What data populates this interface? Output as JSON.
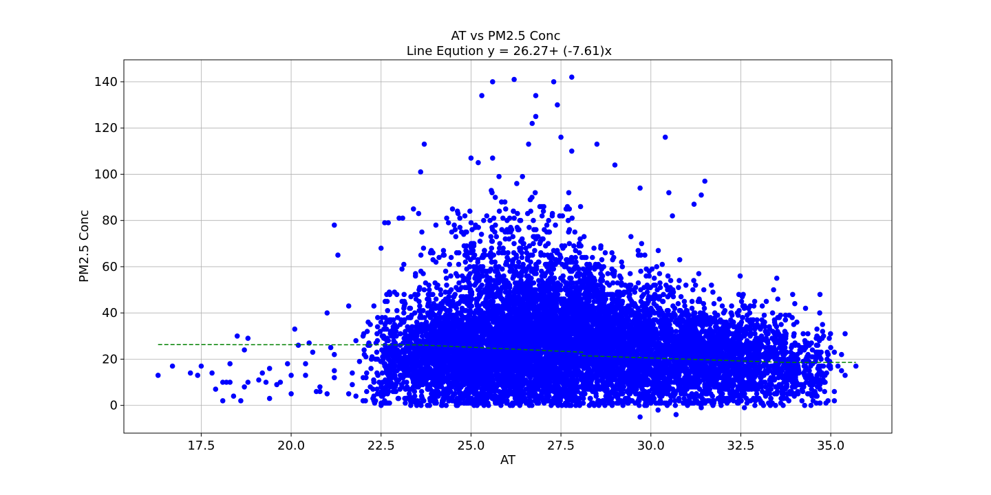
{
  "chart_data": {
    "type": "scatter",
    "title": "AT vs PM2.5 Conc",
    "subtitle": "Line Eqution y = 26.27+ (-7.61)x",
    "xlabel": "AT",
    "ylabel": "PM2.5 Conc",
    "xlim": [
      15.35,
      36.7
    ],
    "ylim": [
      -12,
      149.5
    ],
    "xticks": [
      "17.5",
      "20.0",
      "22.5",
      "25.0",
      "27.5",
      "30.0",
      "32.5",
      "35.0"
    ],
    "yticks": [
      "0",
      "20",
      "40",
      "60",
      "80",
      "100",
      "120",
      "140"
    ],
    "grid": true,
    "colors": {
      "points": "#0000ff",
      "trend": "#008000"
    },
    "trend_line": {
      "style": "dashed",
      "points": [
        [
          16.3,
          26.3
        ],
        [
          23.5,
          26.2
        ],
        [
          28.1,
          23.0
        ],
        [
          28.1,
          21.5
        ],
        [
          33.7,
          18.6
        ],
        [
          35.7,
          18.6
        ]
      ]
    },
    "series": [
      {
        "outliers": [
          [
            16.3,
            13
          ],
          [
            16.7,
            17
          ],
          [
            17.2,
            14
          ],
          [
            17.4,
            13
          ],
          [
            17.5,
            17
          ],
          [
            17.8,
            14
          ],
          [
            17.9,
            7
          ],
          [
            18.1,
            2
          ],
          [
            18.1,
            10
          ],
          [
            18.2,
            10
          ],
          [
            18.3,
            10
          ],
          [
            18.3,
            18
          ],
          [
            18.4,
            4
          ],
          [
            18.5,
            30
          ],
          [
            18.6,
            2
          ],
          [
            18.7,
            8
          ],
          [
            18.7,
            24
          ],
          [
            18.8,
            29
          ],
          [
            18.8,
            10
          ],
          [
            19.1,
            11
          ],
          [
            19.2,
            14
          ],
          [
            19.3,
            10
          ],
          [
            19.4,
            3
          ],
          [
            19.4,
            16
          ],
          [
            19.6,
            9
          ],
          [
            19.7,
            10
          ],
          [
            19.9,
            18
          ],
          [
            20.0,
            5
          ],
          [
            20.0,
            13
          ],
          [
            20.1,
            33
          ],
          [
            20.2,
            26
          ],
          [
            20.4,
            13
          ],
          [
            20.4,
            18
          ],
          [
            20.5,
            27
          ],
          [
            20.6,
            23
          ],
          [
            20.7,
            6
          ],
          [
            20.8,
            8
          ],
          [
            20.8,
            6
          ],
          [
            21.0,
            5
          ],
          [
            21.0,
            40
          ],
          [
            21.1,
            25
          ],
          [
            21.2,
            78
          ],
          [
            21.2,
            22
          ],
          [
            21.2,
            15
          ],
          [
            21.2,
            12
          ],
          [
            21.3,
            65
          ],
          [
            21.6,
            43
          ],
          [
            21.6,
            5
          ],
          [
            21.7,
            14
          ],
          [
            21.7,
            9
          ],
          [
            21.8,
            4
          ],
          [
            21.8,
            28
          ],
          [
            21.9,
            19
          ],
          [
            22.0,
            30
          ],
          [
            22.0,
            2
          ],
          [
            22.1,
            14
          ],
          [
            22.1,
            6
          ],
          [
            22.2,
            35
          ],
          [
            22.2,
            8
          ],
          [
            22.3,
            43
          ],
          [
            22.3,
            10
          ],
          [
            22.4,
            5
          ],
          [
            22.5,
            68
          ],
          [
            22.6,
            79
          ],
          [
            22.7,
            79
          ],
          [
            23.0,
            81
          ],
          [
            23.1,
            81
          ],
          [
            23.4,
            85
          ],
          [
            23.6,
            101
          ],
          [
            23.7,
            113
          ],
          [
            25.0,
            107
          ],
          [
            25.2,
            105
          ],
          [
            25.3,
            134
          ],
          [
            25.6,
            107
          ],
          [
            25.6,
            140
          ],
          [
            26.2,
            141
          ],
          [
            26.6,
            113
          ],
          [
            26.7,
            122
          ],
          [
            26.8,
            125
          ],
          [
            26.8,
            134
          ],
          [
            27.3,
            140
          ],
          [
            27.4,
            130
          ],
          [
            27.5,
            116
          ],
          [
            27.8,
            142
          ],
          [
            27.8,
            110
          ],
          [
            28.5,
            113
          ],
          [
            29.0,
            104
          ],
          [
            29.7,
            94
          ],
          [
            30.4,
            116
          ],
          [
            30.5,
            92
          ],
          [
            30.6,
            82
          ],
          [
            31.2,
            87
          ],
          [
            31.5,
            97
          ],
          [
            31.4,
            91
          ],
          [
            29.7,
            -5
          ],
          [
            30.2,
            -2
          ],
          [
            30.7,
            -4
          ],
          [
            31.4,
            -1
          ],
          [
            32.6,
            -1
          ],
          [
            33.5,
            55
          ],
          [
            34.0,
            44
          ],
          [
            34.3,
            42
          ],
          [
            34.7,
            48
          ],
          [
            34.8,
            30
          ],
          [
            34.9,
            20
          ],
          [
            35.0,
            25
          ],
          [
            35.1,
            23
          ],
          [
            35.1,
            2
          ],
          [
            35.1,
            6
          ],
          [
            35.2,
            17
          ],
          [
            35.3,
            22
          ],
          [
            35.3,
            15
          ],
          [
            35.4,
            31
          ],
          [
            35.4,
            13
          ],
          [
            35.7,
            17
          ],
          [
            34.6,
            10
          ],
          [
            34.5,
            5
          ],
          [
            34.2,
            2
          ],
          [
            33.9,
            5
          ],
          [
            34.6,
            1
          ]
        ],
        "dense_clusters": [
          {
            "mx": 26.8,
            "sx": 1.6,
            "my": 25,
            "sy": 14,
            "n": 3600,
            "xmin": 23.2,
            "xmax": 30.5
          },
          {
            "mx": 31.4,
            "sx": 1.5,
            "my": 20,
            "sy": 11,
            "n": 2400,
            "xmin": 28.5,
            "xmax": 34.0
          },
          {
            "mx": 24.3,
            "sx": 1.0,
            "my": 21,
            "sy": 12,
            "n": 1200,
            "xmin": 22.5,
            "xmax": 26.5
          },
          {
            "mx": 28.6,
            "sx": 1.4,
            "my": 32,
            "sy": 14,
            "n": 1200,
            "xmin": 25.5,
            "xmax": 31.5
          },
          {
            "mx": 26.3,
            "sx": 1.2,
            "my": 55,
            "sy": 16,
            "n": 700,
            "xmin": 23.5,
            "xmax": 29.5
          },
          {
            "mx": 34.3,
            "sx": 0.6,
            "my": 16,
            "sy": 9,
            "n": 300,
            "xmin": 33.3,
            "xmax": 35.0
          },
          {
            "mx": 22.7,
            "sx": 0.5,
            "my": 18,
            "sy": 12,
            "n": 160,
            "xmin": 22.0,
            "xmax": 23.5
          }
        ],
        "cluster_bounds": {
          "ymin": 0,
          "ymax": 100
        }
      }
    ]
  }
}
